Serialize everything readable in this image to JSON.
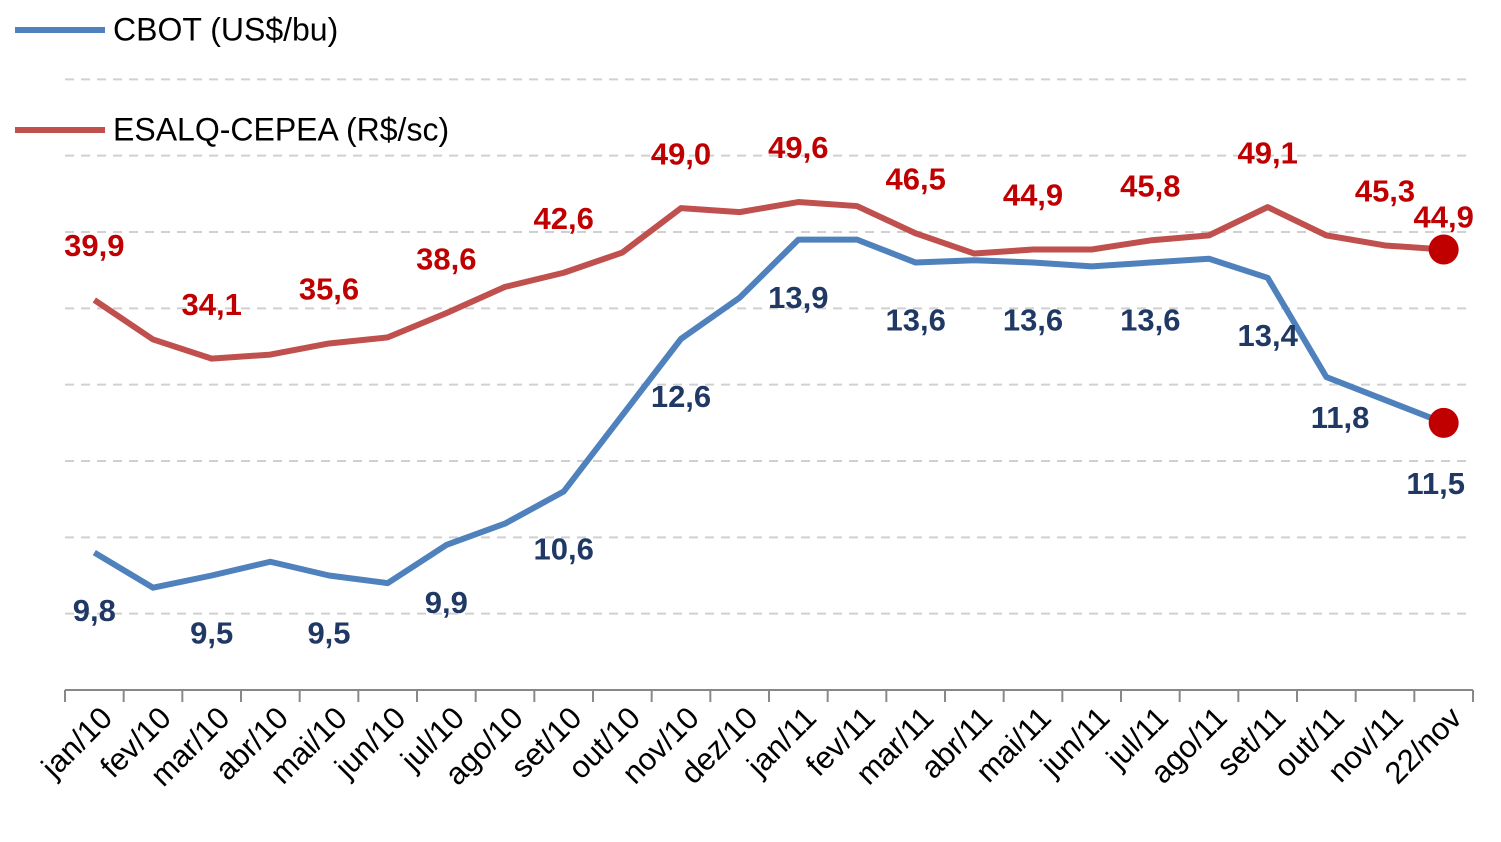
{
  "chart_data": {
    "type": "line",
    "categories": [
      "jan/10",
      "fev/10",
      "mar/10",
      "abr/10",
      "mai/10",
      "jun/10",
      "jul/10",
      "ago/10",
      "set/10",
      "out/10",
      "nov/10",
      "dez/10",
      "jan/11",
      "fev/11",
      "mar/11",
      "abr/11",
      "mai/11",
      "jun/11",
      "jul/11",
      "ago/11",
      "set/11",
      "out/11",
      "nov/11",
      "22/nov"
    ],
    "series": [
      {
        "name": "CBOT (US$/bu)",
        "color": "#4f81bd",
        "label_color": "#1f3864",
        "values": [
          9.8,
          9.34,
          9.5,
          9.68,
          9.5,
          9.4,
          9.9,
          10.18,
          10.6,
          11.6,
          12.6,
          13.14,
          13.9,
          13.9,
          13.6,
          13.63,
          13.6,
          13.55,
          13.6,
          13.65,
          13.4,
          12.1,
          11.8,
          11.5
        ],
        "value_labels": [
          "9,8",
          null,
          "9,5",
          null,
          "9,5",
          null,
          "9,9",
          null,
          "10,6",
          null,
          "12,6",
          null,
          "13,9",
          null,
          "13,6",
          null,
          "13,6",
          null,
          "13,6",
          null,
          "13,4",
          null,
          "11,8",
          "11,5"
        ]
      },
      {
        "name": "ESALQ-CEPEA (R$/sc)",
        "color": "#c0504d",
        "label_color": "#c00000",
        "axis": "y2",
        "values": [
          39.9,
          36.0,
          34.1,
          34.5,
          35.6,
          36.2,
          38.6,
          41.2,
          42.6,
          44.6,
          49.0,
          48.6,
          49.6,
          49.2,
          46.5,
          44.5,
          44.9,
          44.9,
          45.8,
          46.3,
          49.1,
          46.3,
          45.3,
          44.9
        ],
        "value_labels": [
          "39,9",
          null,
          "34,1",
          null,
          "35,6",
          null,
          "38,6",
          null,
          "42,6",
          null,
          "49,0",
          null,
          "49,6",
          null,
          "46,5",
          null,
          "44,9",
          null,
          "45,8",
          null,
          "49,1",
          null,
          "45,3",
          "44,9"
        ]
      }
    ],
    "last_marker_color": "#c00000",
    "ylim": [
      8,
      17
    ],
    "yticks": [
      9,
      10,
      11,
      12,
      13,
      14,
      15,
      16
    ],
    "y2lim": [
      1.3,
      69.3
    ],
    "grid": true,
    "legend": "top-left"
  }
}
